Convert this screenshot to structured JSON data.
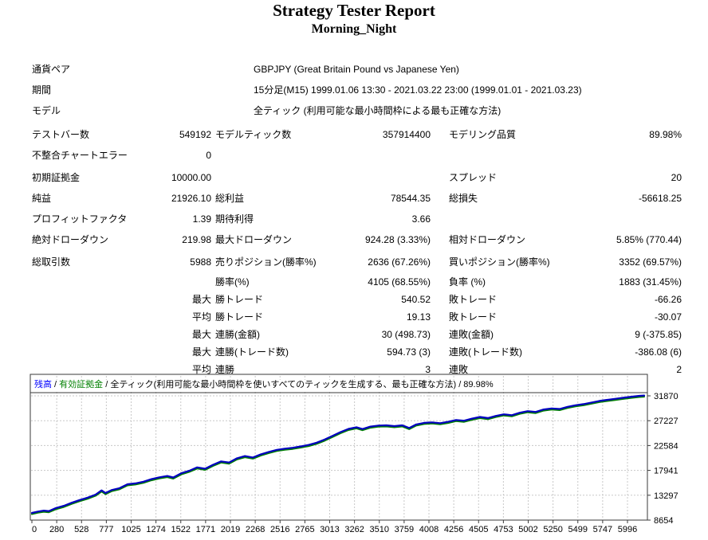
{
  "report": {
    "title": "Strategy Tester Report",
    "subtitle": "Morning_Night"
  },
  "info_rows": [
    {
      "label": "通貨ペア",
      "value": "GBPJPY (Great Britain Pound vs Japanese Yen)"
    },
    {
      "label": "期間",
      "value": "15分足(M15) 1999.01.06 13:30 - 2021.03.22 23:00 (1999.01.01 - 2021.03.23)"
    },
    {
      "label": "モデル",
      "value": "全ティック (利用可能な最小時間枠による最も正確な方法)"
    }
  ],
  "stat_sections": [
    [
      [
        "テストバー数",
        "549192",
        "モデルティック数",
        "357914400",
        "モデリング品質",
        "89.98%"
      ],
      [
        "不整合チャートエラー",
        "0",
        "",
        "",
        "",
        ""
      ]
    ],
    [
      [
        "初期証拠金",
        "10000.00",
        "",
        "",
        "スプレッド",
        "20"
      ],
      [
        "純益",
        "21926.10",
        "総利益",
        "78544.35",
        "総損失",
        "-56618.25"
      ],
      [
        "プロフィットファクタ",
        "1.39",
        "期待利得",
        "3.66",
        "",
        ""
      ],
      [
        "絶対ドローダウン",
        "219.98",
        "最大ドローダウン",
        "924.28 (3.33%)",
        "相対ドローダウン",
        "5.85% (770.44)"
      ]
    ],
    [
      [
        "総取引数",
        "5988",
        "売りポジション(勝率%)",
        "2636 (67.26%)",
        "買いポジション(勝率%)",
        "3352 (69.57%)"
      ],
      [
        "",
        "",
        "勝率(%)",
        "4105 (68.55%)",
        "負率 (%)",
        "1883 (31.45%)"
      ],
      [
        "",
        "最大",
        "勝トレード",
        "540.52",
        "敗トレード",
        "-66.26"
      ],
      [
        "",
        "平均",
        "勝トレード",
        "19.13",
        "敗トレード",
        "-30.07"
      ],
      [
        "",
        "最大",
        "連勝(金額)",
        "30 (498.73)",
        "連敗(金額)",
        "9 (-375.85)"
      ],
      [
        "",
        "最大",
        "連勝(トレード数)",
        "594.73 (3)",
        "連敗(トレード数)",
        "-386.08 (6)"
      ],
      [
        "",
        "平均",
        "連勝",
        "3",
        "連敗",
        "2"
      ]
    ]
  ],
  "chart_data": {
    "type": "line",
    "title": "",
    "xlabel": "",
    "ylabel": "",
    "legend_parts": [
      {
        "text": "残高",
        "color": "#0000ff"
      },
      {
        "text": " / ",
        "color": "#000000"
      },
      {
        "text": "有効証拠金",
        "color": "#008000"
      },
      {
        "text": " / 全ティック(利用可能な最小時間枠を使いすべてのティックを生成する、最も正確な方法) / 89.98%",
        "color": "#000000"
      }
    ],
    "x_ticks": [
      0,
      280,
      528,
      777,
      1025,
      1274,
      1522,
      1771,
      2019,
      2268,
      2516,
      2765,
      3013,
      3262,
      3510,
      3759,
      4008,
      4256,
      4505,
      4753,
      5002,
      5250,
      5499,
      5747,
      5996
    ],
    "y_ticks": [
      8654,
      13297,
      17941,
      22584,
      27227,
      31870
    ],
    "x_range": [
      0,
      6150
    ],
    "y_range": [
      8654,
      31870
    ],
    "grid": true,
    "legend_position": "top-left",
    "line_color": "#0000c0",
    "equity_color": "#008000",
    "grid_color": "#c8c8c8",
    "border_color": "#3a3a3a",
    "series": [
      {
        "name": "残高",
        "points": [
          [
            0,
            10000
          ],
          [
            60,
            10250
          ],
          [
            120,
            10430
          ],
          [
            170,
            10340
          ],
          [
            240,
            10900
          ],
          [
            320,
            11320
          ],
          [
            400,
            11900
          ],
          [
            480,
            12400
          ],
          [
            560,
            12850
          ],
          [
            640,
            13420
          ],
          [
            700,
            14200
          ],
          [
            740,
            13720
          ],
          [
            800,
            14260
          ],
          [
            880,
            14620
          ],
          [
            960,
            15350
          ],
          [
            1040,
            15520
          ],
          [
            1120,
            15820
          ],
          [
            1200,
            16300
          ],
          [
            1280,
            16650
          ],
          [
            1360,
            16900
          ],
          [
            1420,
            16620
          ],
          [
            1500,
            17400
          ],
          [
            1580,
            17860
          ],
          [
            1660,
            18500
          ],
          [
            1740,
            18260
          ],
          [
            1820,
            19000
          ],
          [
            1900,
            19620
          ],
          [
            1980,
            19420
          ],
          [
            2060,
            20200
          ],
          [
            2140,
            20620
          ],
          [
            2220,
            20350
          ],
          [
            2300,
            20950
          ],
          [
            2380,
            21400
          ],
          [
            2460,
            21780
          ],
          [
            2540,
            22000
          ],
          [
            2620,
            22160
          ],
          [
            2700,
            22420
          ],
          [
            2780,
            22700
          ],
          [
            2860,
            23120
          ],
          [
            2940,
            23700
          ],
          [
            3020,
            24400
          ],
          [
            3100,
            25100
          ],
          [
            3180,
            25700
          ],
          [
            3260,
            26000
          ],
          [
            3320,
            25660
          ],
          [
            3400,
            26120
          ],
          [
            3480,
            26320
          ],
          [
            3560,
            26360
          ],
          [
            3640,
            26220
          ],
          [
            3720,
            26360
          ],
          [
            3790,
            25860
          ],
          [
            3860,
            26520
          ],
          [
            3940,
            26820
          ],
          [
            4020,
            26920
          ],
          [
            4100,
            26760
          ],
          [
            4180,
            27020
          ],
          [
            4260,
            27360
          ],
          [
            4340,
            27220
          ],
          [
            4420,
            27620
          ],
          [
            4500,
            27920
          ],
          [
            4580,
            27720
          ],
          [
            4660,
            28120
          ],
          [
            4740,
            28420
          ],
          [
            4820,
            28260
          ],
          [
            4900,
            28720
          ],
          [
            4980,
            29020
          ],
          [
            5060,
            28870
          ],
          [
            5140,
            29320
          ],
          [
            5220,
            29520
          ],
          [
            5300,
            29420
          ],
          [
            5380,
            29820
          ],
          [
            5460,
            30120
          ],
          [
            5540,
            30320
          ],
          [
            5620,
            30620
          ],
          [
            5700,
            30920
          ],
          [
            5780,
            31120
          ],
          [
            5860,
            31320
          ],
          [
            5940,
            31520
          ],
          [
            6020,
            31700
          ],
          [
            6100,
            31870
          ],
          [
            6150,
            31926
          ]
        ]
      }
    ]
  }
}
